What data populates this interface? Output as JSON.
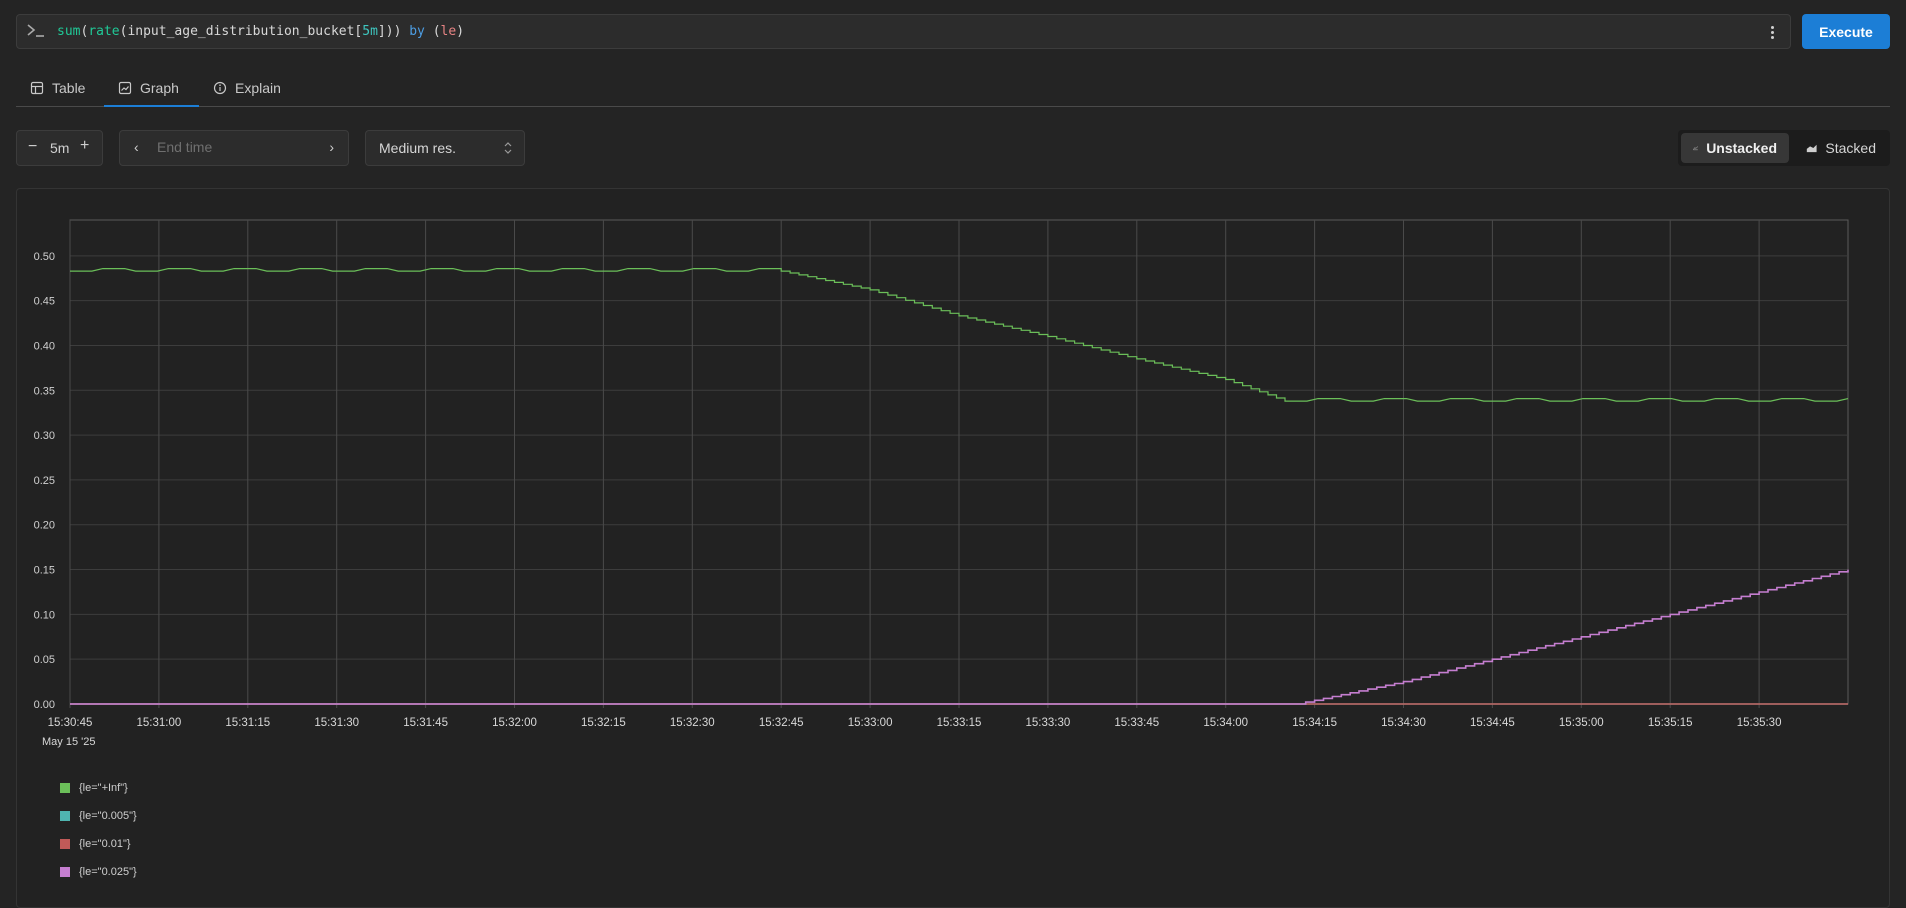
{
  "query": {
    "tokens": [
      {
        "text": "sum",
        "kind": "fn"
      },
      {
        "text": "(",
        "kind": "plain"
      },
      {
        "text": "rate",
        "kind": "fn"
      },
      {
        "text": "(input_age_distribution_bucket[",
        "kind": "plain"
      },
      {
        "text": "5m",
        "kind": "num"
      },
      {
        "text": "])) ",
        "kind": "plain"
      },
      {
        "text": "by",
        "kind": "kw"
      },
      {
        "text": " (",
        "kind": "plain"
      },
      {
        "text": "le",
        "kind": "label"
      },
      {
        "text": ")",
        "kind": "plain"
      }
    ],
    "execute_label": "Execute"
  },
  "tabs": [
    {
      "label": "Table",
      "icon": "table-icon",
      "active": false
    },
    {
      "label": "Graph",
      "icon": "graph-icon",
      "active": true
    },
    {
      "label": "Explain",
      "icon": "info-icon",
      "active": false
    }
  ],
  "controls": {
    "range_minus": "−",
    "range_value": "5m",
    "range_plus": "+",
    "end_time_placeholder": "End time",
    "resolution": "Medium res.",
    "unstacked_label": "Unstacked",
    "stacked_label": "Stacked"
  },
  "chart_data": {
    "type": "line",
    "ylim": [
      0,
      0.54
    ],
    "yticks": [
      "0.00",
      "0.05",
      "0.10",
      "0.15",
      "0.20",
      "0.25",
      "0.30",
      "0.35",
      "0.40",
      "0.45",
      "0.50"
    ],
    "xlim": [
      "15:30:45",
      "15:35:45"
    ],
    "xticks": [
      "15:30:45",
      "15:31:00",
      "15:31:15",
      "15:31:30",
      "15:31:45",
      "15:32:00",
      "15:32:15",
      "15:32:30",
      "15:32:45",
      "15:33:00",
      "15:33:15",
      "15:33:30",
      "15:33:45",
      "15:34:00",
      "15:34:15",
      "15:34:30",
      "15:34:45",
      "15:35:00",
      "15:35:15",
      "15:35:30"
    ],
    "date_label": "May 15 '25",
    "grid": true,
    "legend_position": "bottom-left",
    "series": [
      {
        "name": "{le=\"+Inf\"}",
        "color": "#6bbf59",
        "x": [
          "15:30:45",
          "15:32:45",
          "15:33:00",
          "15:33:15",
          "15:33:30",
          "15:33:45",
          "15:34:00",
          "15:34:10",
          "15:35:45"
        ],
        "y": [
          0.483,
          0.483,
          0.462,
          0.433,
          0.41,
          0.385,
          0.362,
          0.338,
          0.338
        ]
      },
      {
        "name": "{le=\"0.005\"}",
        "color": "#4fb5b0",
        "x": [
          "15:30:45",
          "15:35:45"
        ],
        "y": [
          0,
          0
        ]
      },
      {
        "name": "{le=\"0.01\"}",
        "color": "#c05a58",
        "x": [
          "15:30:45",
          "15:35:45"
        ],
        "y": [
          0,
          0
        ]
      },
      {
        "name": "{le=\"0.025\"}",
        "color": "#c57ed0",
        "x": [
          "15:30:45",
          "15:34:12",
          "15:34:30",
          "15:34:45",
          "15:35:00",
          "15:35:15",
          "15:35:30",
          "15:35:45"
        ],
        "y": [
          0,
          0,
          0.025,
          0.05,
          0.075,
          0.1,
          0.125,
          0.15
        ]
      }
    ]
  }
}
